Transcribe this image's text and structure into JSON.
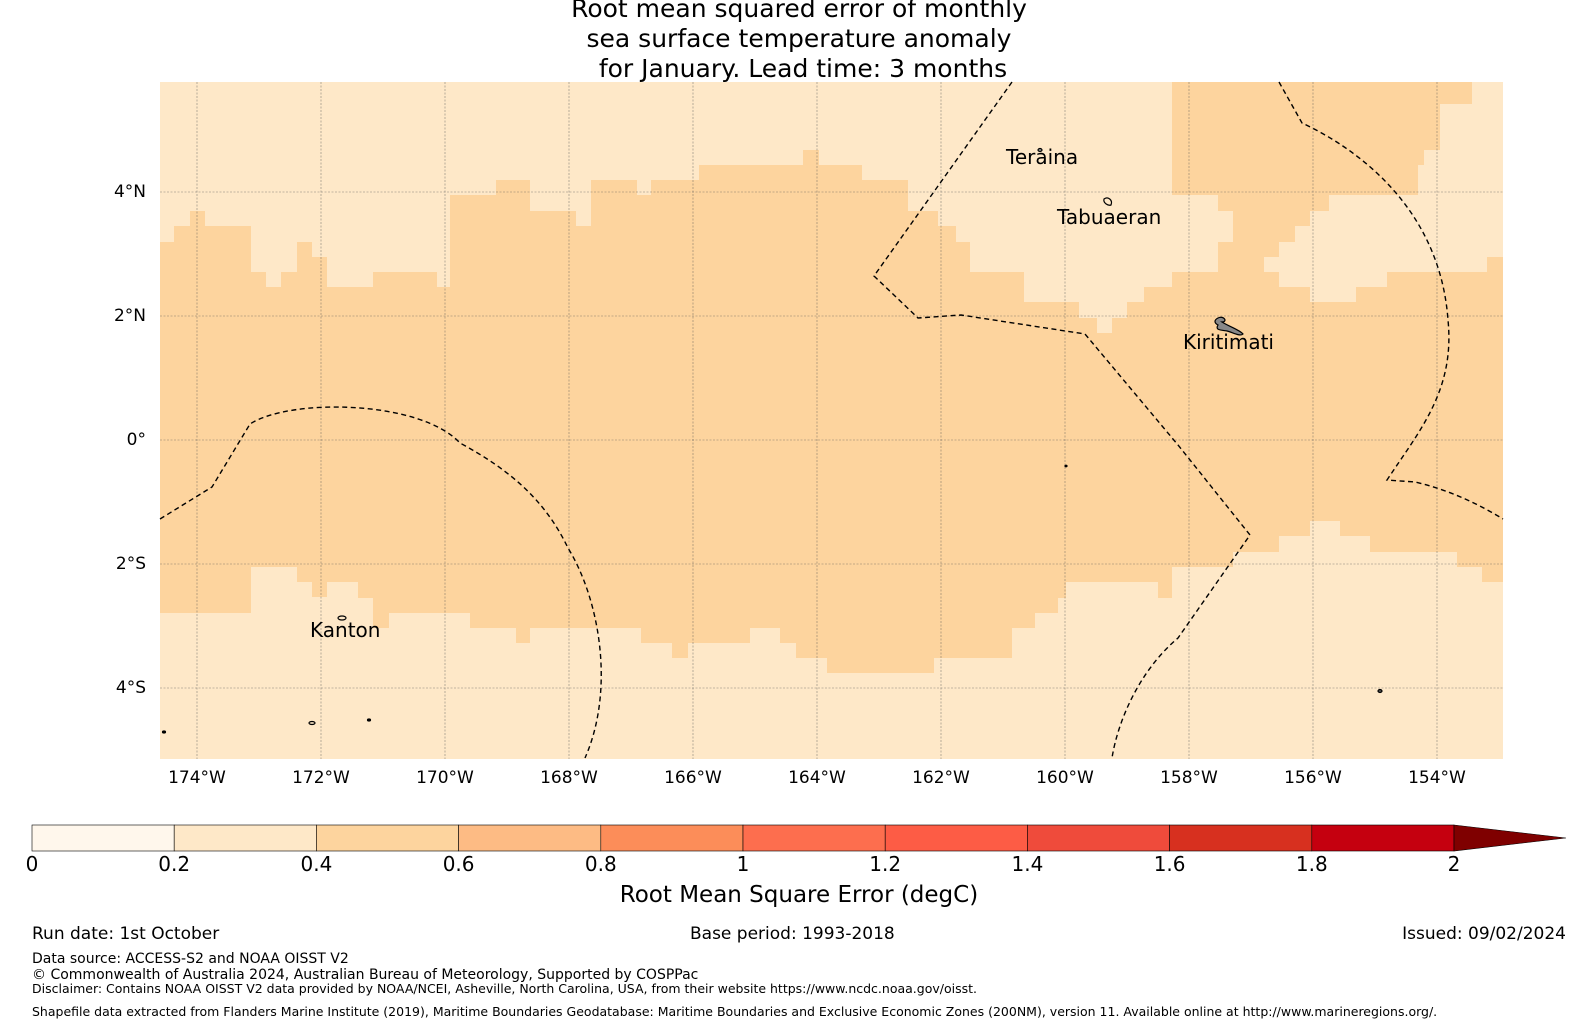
{
  "title": {
    "line1": "Root mean squared error of monthly",
    "line2": "sea surface temperature anomaly",
    "line3": " for January. Lead time: 3 months"
  },
  "map": {
    "lat_labels": [
      "4°N",
      "2°N",
      "0°",
      "2°S",
      "4°S"
    ],
    "lon_labels": [
      "174°W",
      "172°W",
      "170°W",
      "168°W",
      "166°W",
      "164°W",
      "162°W",
      "160°W",
      "158°W",
      "156°W",
      "154°W"
    ],
    "places": {
      "teraina": "Teraina",
      "tabuaeran": "Tabuaeran",
      "kiritimati": "Kiritimati",
      "kanton": "Kanton"
    },
    "colors": {
      "band_0_02": "#fee8c8",
      "band_02_04": "#fdd49e",
      "boundary": "#000000",
      "grid": "#555555"
    }
  },
  "colorbar": {
    "tick_labels": [
      "0",
      "0.2",
      "0.4",
      "0.6",
      "0.8",
      "1",
      "1.2",
      "1.4",
      "1.6",
      "1.8",
      "2"
    ],
    "colors": [
      "#fff7ec",
      "#fee8c8",
      "#fdd49e",
      "#fdbb84",
      "#fc8d59",
      "#fd6e4e",
      "#fd5c45",
      "#ef4b3b",
      "#d7301f",
      "#c5000f",
      "#b00000"
    ],
    "extend_color": "#7f0000",
    "title": "Root Mean Square Error (degC)"
  },
  "footer": {
    "run_date": "Run date: 1st October",
    "base_period": "Base period: 1993-2018",
    "issued": "Issued: 09/02/2024",
    "data_source": "Data source: ACCESS-S2 and NOAA OISST V2",
    "copyright": "© Commonwealth of Australia 2024, Australian Bureau of Meteorology, Supported by COSPPac",
    "disclaimer": "Disclaimer: Contains NOAA OISST V2 data provided by NOAA/NCEI, Asheville, North Carolina, USA, from their website https://www.ncdc.noaa.gov/oisst.",
    "shapefile": "Shapefile data extracted from Flanders Marine Institute (2019), Maritime Boundaries Geodatabase: Maritime Boundaries and Exclusive Economic Zones (200NM), version 11. Available online at http://www.marineregions.org/."
  }
}
